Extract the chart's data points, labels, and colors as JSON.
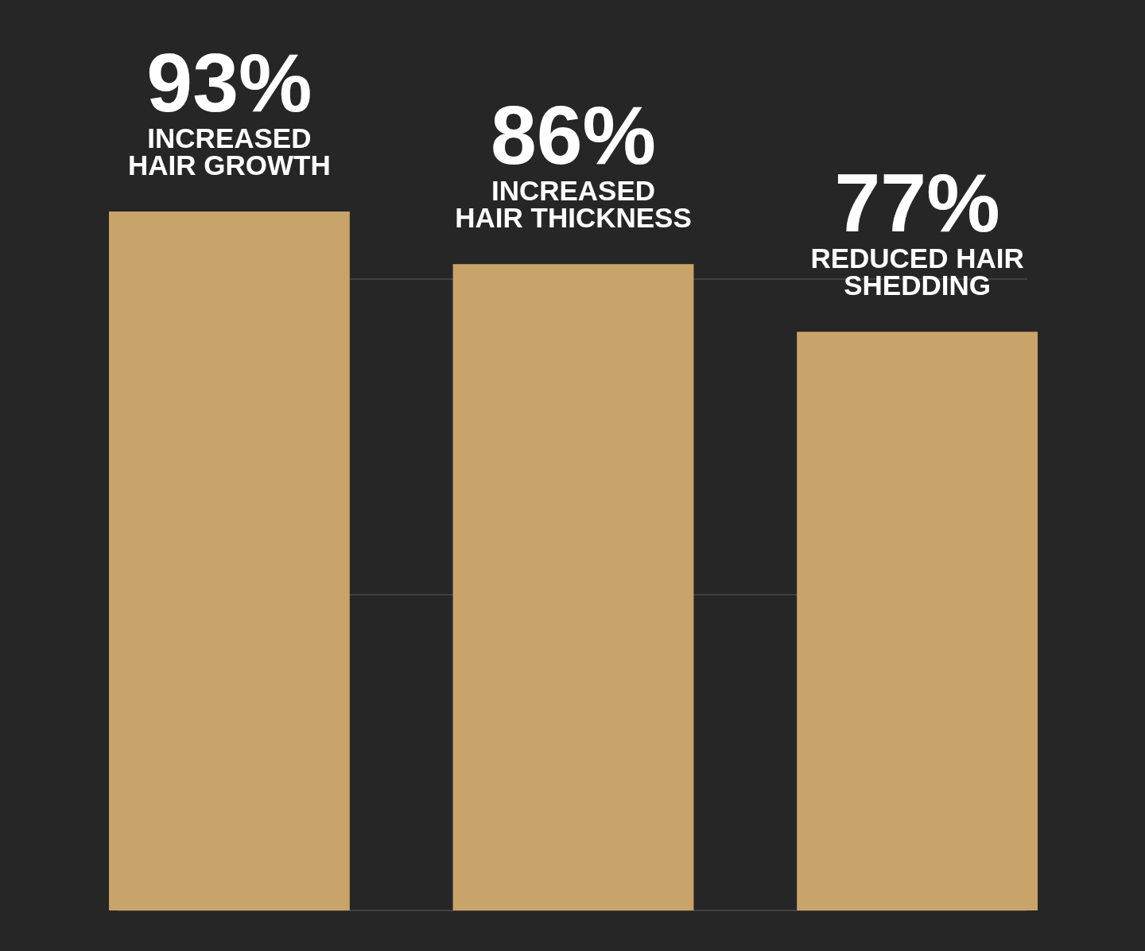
{
  "chart_data": {
    "type": "bar",
    "categories": [
      "INCREASED HAIR GROWTH",
      "INCREASED HAIR THICKNESS",
      "REDUCED HAIR SHEDDING"
    ],
    "values": [
      93,
      86,
      77
    ],
    "value_labels": [
      "93%",
      "86%",
      "77%"
    ],
    "color": "#c9a46a",
    "ref_lines": [
      {
        "axis": "y",
        "value": 0,
        "color": "#4a4a4a"
      },
      {
        "axis": "y",
        "value": 42,
        "color": "#4a4a4a"
      },
      {
        "axis": "y",
        "value": 84,
        "color": "#4a4a4a"
      }
    ],
    "tick_labels": "x"
  }
}
